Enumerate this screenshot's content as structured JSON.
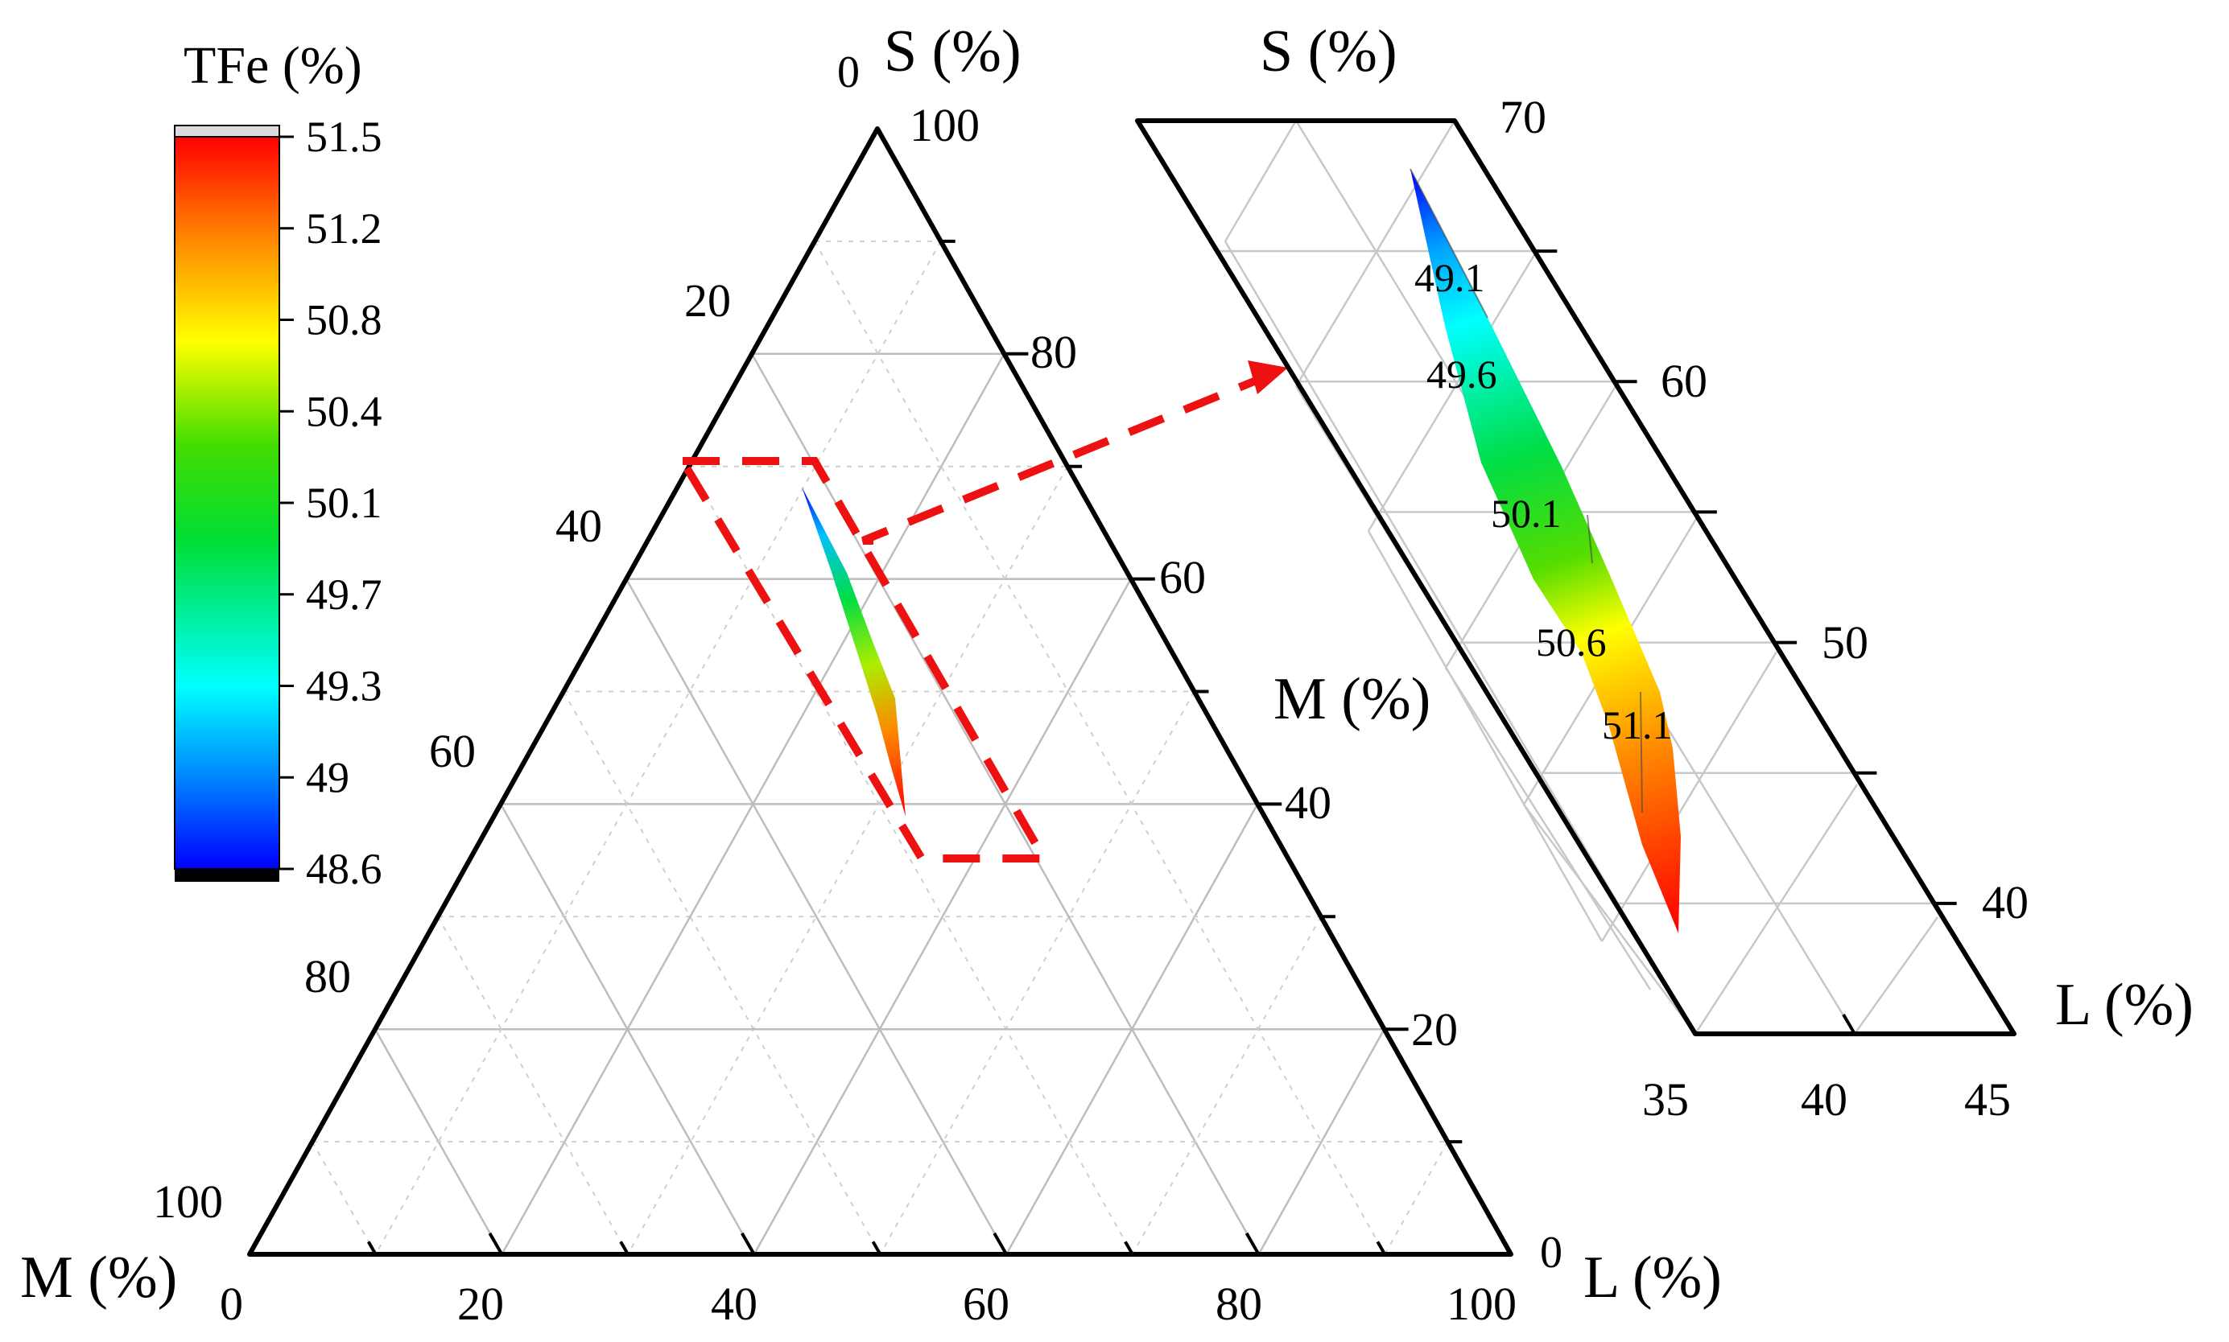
{
  "colorbar": {
    "title": "TFe (%)",
    "ticks": [
      "51.5",
      "51.2",
      "50.8",
      "50.4",
      "50.1",
      "49.7",
      "49.3",
      "49",
      "48.6"
    ],
    "min": 48.6,
    "max": 51.5,
    "colors": [
      "#000000",
      "#0000ff",
      "#00aaff",
      "#00ffff",
      "#00dd44",
      "#22cc00",
      "#aaee00",
      "#ffff00",
      "#ffaa00",
      "#ff5500",
      "#ff0000",
      "#dddddd"
    ]
  },
  "ternary": {
    "s_label": "S (%)",
    "m_label": "M (%)",
    "m_label_bottom": "M (%)",
    "l_label": "L (%)",
    "s_corner_zero": "0",
    "l_corner_zero": "0",
    "right_ticks": [
      "100",
      "80",
      "60",
      "40",
      "20"
    ],
    "left_ticks": [
      "20",
      "40",
      "60",
      "80",
      "100"
    ],
    "bottom_ticks": [
      "0",
      "20",
      "40",
      "60",
      "80",
      "100"
    ]
  },
  "zoom": {
    "s_label": "S (%)",
    "l_label": "L (%)",
    "right_ticks": [
      "70",
      "60",
      "50",
      "40"
    ],
    "bottom_ticks": [
      "35",
      "40",
      "45"
    ],
    "contour_labels": [
      "49.1",
      "49.6",
      "50.1",
      "50.6",
      "51.1"
    ]
  },
  "chart_data": {
    "type": "ternary contour",
    "axes": [
      "S (%)",
      "M (%)",
      "L (%)"
    ],
    "colorbar_range": [
      48.6,
      51.5
    ],
    "zoom_range": {
      "S": [
        35,
        70
      ],
      "L": [
        35,
        45
      ]
    },
    "contour_levels": [
      49.1,
      49.6,
      50.1,
      50.6,
      51.1
    ],
    "trend": "TFe rises from 48.6 at S=66, L=37 to 51.5 at S=38, L=42"
  }
}
